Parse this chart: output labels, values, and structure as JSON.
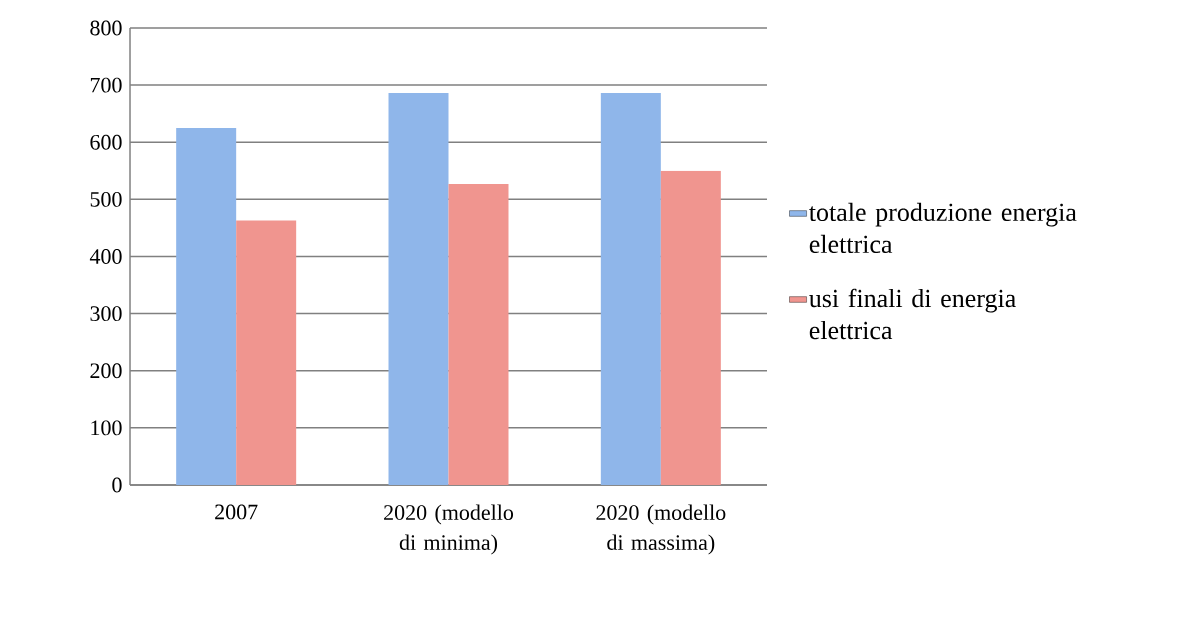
{
  "chart_data": {
    "type": "bar",
    "categories": [
      "2007",
      "2020 (modello di minima)",
      "2020 (modello di massima)"
    ],
    "series": [
      {
        "name": "totale produzione energia elettrica",
        "color": "#8fb6ea",
        "values": [
          625,
          686,
          686
        ]
      },
      {
        "name": "usi finali di energia elettrica",
        "color": "#f0958f",
        "values": [
          463,
          527,
          550
        ]
      }
    ],
    "ylim": [
      0,
      800
    ],
    "yticks": [
      0,
      100,
      200,
      300,
      400,
      500,
      600,
      700,
      800
    ],
    "grid": "y",
    "legend": "right"
  }
}
